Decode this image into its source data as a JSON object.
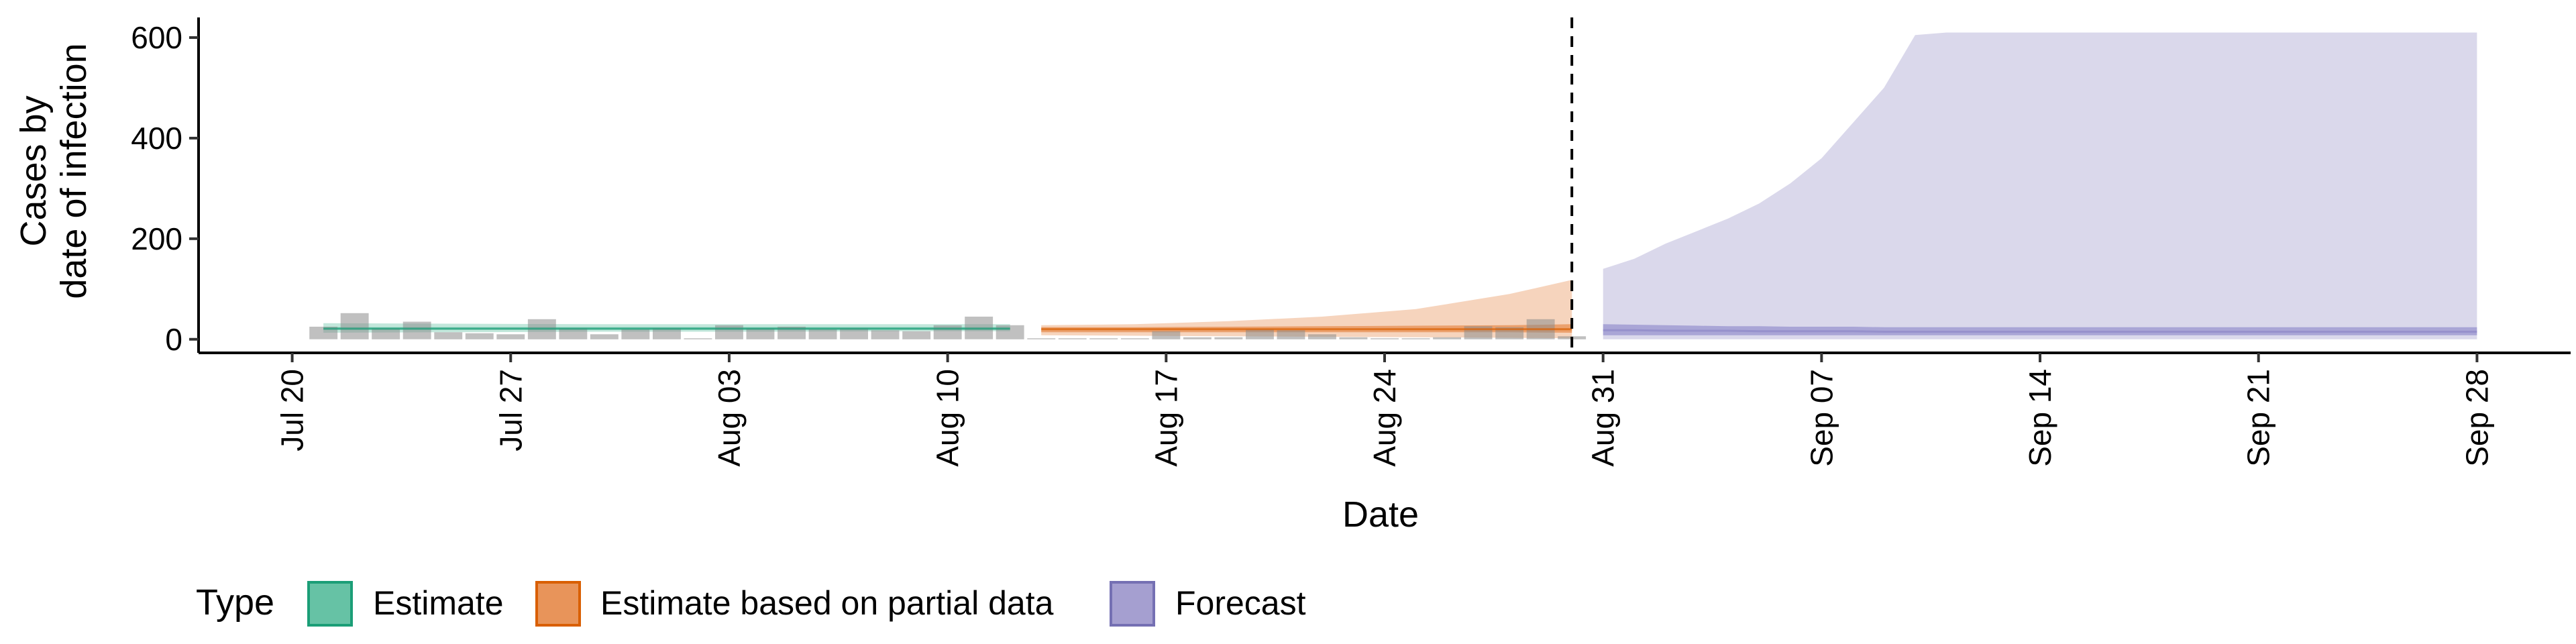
{
  "chart_data": {
    "type": "area",
    "title": "",
    "xlabel": "Date",
    "ylabel_line1": "Cases by",
    "ylabel_line2": "date of infection",
    "x_start": "2020-07-17",
    "x_end": "2020-10-01",
    "ylim": [
      -27,
      640
    ],
    "y_ticks": [
      0,
      200,
      400,
      600
    ],
    "x_tick_labels": [
      "Jul 20",
      "Jul 27",
      "Aug 03",
      "Aug 10",
      "Aug 17",
      "Aug 24",
      "Aug 31",
      "Sep 07",
      "Sep 14",
      "Sep 21",
      "Sep 28"
    ],
    "x_tick_dates": [
      "2020-07-20",
      "2020-07-27",
      "2020-08-03",
      "2020-08-10",
      "2020-08-17",
      "2020-08-24",
      "2020-08-31",
      "2020-09-07",
      "2020-09-14",
      "2020-09-21",
      "2020-09-28"
    ],
    "forecast_date": "2020-08-30",
    "grid": false,
    "legend": {
      "title": "Type",
      "position": "bottom",
      "items": [
        {
          "label": "Estimate",
          "fill": "#66C2A5",
          "stroke": "#1B9E77"
        },
        {
          "label": "Estimate based on partial data",
          "fill": "#E8945A",
          "stroke": "#D95F02"
        },
        {
          "label": "Forecast",
          "fill": "#A59FD0",
          "stroke": "#7570B3"
        }
      ]
    },
    "observed_cases": {
      "dates": [
        "2020-07-21",
        "2020-07-22",
        "2020-07-23",
        "2020-07-24",
        "2020-07-25",
        "2020-07-26",
        "2020-07-27",
        "2020-07-28",
        "2020-07-29",
        "2020-07-30",
        "2020-07-31",
        "2020-08-01",
        "2020-08-02",
        "2020-08-03",
        "2020-08-04",
        "2020-08-05",
        "2020-08-06",
        "2020-08-07",
        "2020-08-08",
        "2020-08-09",
        "2020-08-10",
        "2020-08-11",
        "2020-08-12",
        "2020-08-13",
        "2020-08-14",
        "2020-08-15",
        "2020-08-16",
        "2020-08-17",
        "2020-08-18",
        "2020-08-19",
        "2020-08-20",
        "2020-08-21",
        "2020-08-22",
        "2020-08-23",
        "2020-08-24",
        "2020-08-25",
        "2020-08-26",
        "2020-08-27",
        "2020-08-28",
        "2020-08-29",
        "2020-08-30"
      ],
      "values": [
        25,
        52,
        22,
        35,
        14,
        12,
        10,
        40,
        22,
        10,
        20,
        22,
        2,
        28,
        22,
        25,
        20,
        22,
        18,
        16,
        28,
        45,
        28,
        2,
        2,
        2,
        2,
        16,
        4,
        4,
        20,
        18,
        10,
        4,
        2,
        2,
        4,
        26,
        24,
        40,
        6
      ]
    },
    "series": [
      {
        "name": "Estimate",
        "dates": [
          "2020-07-21",
          "2020-07-25",
          "2020-07-30",
          "2020-08-04",
          "2020-08-09",
          "2020-08-12"
        ],
        "lower": [
          13,
          14,
          15,
          15,
          16,
          16
        ],
        "median": [
          21,
          21,
          21,
          21,
          21,
          21
        ],
        "upper": [
          32,
          31,
          30,
          30,
          30,
          30
        ],
        "inner_lower": [
          19,
          19,
          19,
          19,
          19,
          19
        ],
        "inner_upper": [
          24,
          24,
          24,
          24,
          24,
          24
        ]
      },
      {
        "name": "Estimate based on partial data",
        "dates": [
          "2020-08-13",
          "2020-08-16",
          "2020-08-19",
          "2020-08-22",
          "2020-08-25",
          "2020-08-28",
          "2020-08-30"
        ],
        "lower": [
          8,
          7,
          6,
          5,
          4,
          3,
          2
        ],
        "median": [
          20,
          20,
          20,
          20,
          20,
          20,
          20
        ],
        "upper": [
          28,
          30,
          36,
          45,
          60,
          90,
          118
        ],
        "inner_lower": [
          14,
          14,
          14,
          14,
          14,
          14,
          13
        ],
        "inner_upper": [
          24,
          24,
          25,
          26,
          27,
          28,
          30
        ]
      },
      {
        "name": "Forecast",
        "dates": [
          "2020-08-31",
          "2020-09-01",
          "2020-09-02",
          "2020-09-03",
          "2020-09-04",
          "2020-09-05",
          "2020-09-06",
          "2020-09-07",
          "2020-09-08",
          "2020-09-09",
          "2020-09-10",
          "2020-09-11",
          "2020-09-14",
          "2020-09-21",
          "2020-09-28"
        ],
        "lower": [
          0,
          0,
          0,
          0,
          0,
          0,
          0,
          0,
          0,
          0,
          0,
          0,
          0,
          0,
          0
        ],
        "median": [
          18,
          18,
          17,
          17,
          17,
          16,
          16,
          16,
          16,
          15,
          15,
          15,
          15,
          15,
          15
        ],
        "upper": [
          140,
          160,
          190,
          215,
          240,
          270,
          310,
          360,
          430,
          500,
          605,
          610,
          610,
          610,
          610
        ],
        "inner_lower": [
          8,
          8,
          8,
          8,
          8,
          8,
          8,
          8,
          8,
          8,
          8,
          8,
          8,
          8,
          8
        ],
        "inner_upper": [
          30,
          29,
          28,
          27,
          26,
          26,
          25,
          25,
          25,
          24,
          24,
          24,
          24,
          24,
          24
        ]
      }
    ]
  }
}
